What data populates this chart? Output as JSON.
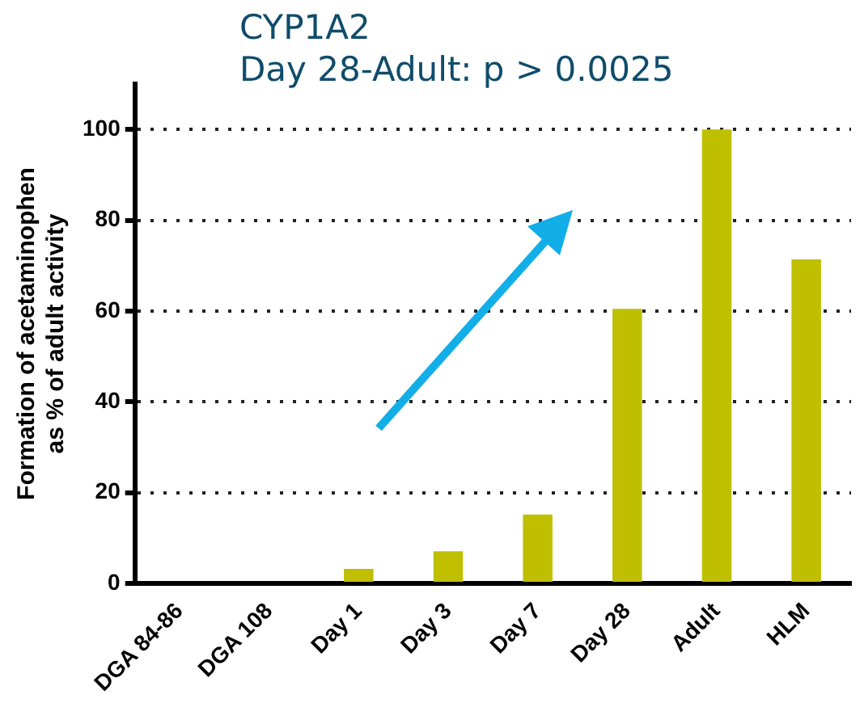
{
  "chart_data": {
    "type": "bar",
    "title": "CYP1A2",
    "subtitle": "Day 28-Adult: p > 0.0025",
    "ylabel": "Formation of acetaminophen\nas % of adult activity",
    "categories": [
      "DGA 84-86",
      "DGA 108",
      "Day 1",
      "Day 3",
      "Day 7",
      "Day 28",
      "Adult",
      "HLM"
    ],
    "values": [
      0,
      0,
      3.2,
      7.1,
      15.2,
      60.5,
      100,
      71.4
    ],
    "color": "#bfbf00",
    "ylim": [
      0,
      110
    ],
    "yticks": [
      0,
      20,
      40,
      60,
      80,
      100
    ],
    "grid": "y"
  }
}
